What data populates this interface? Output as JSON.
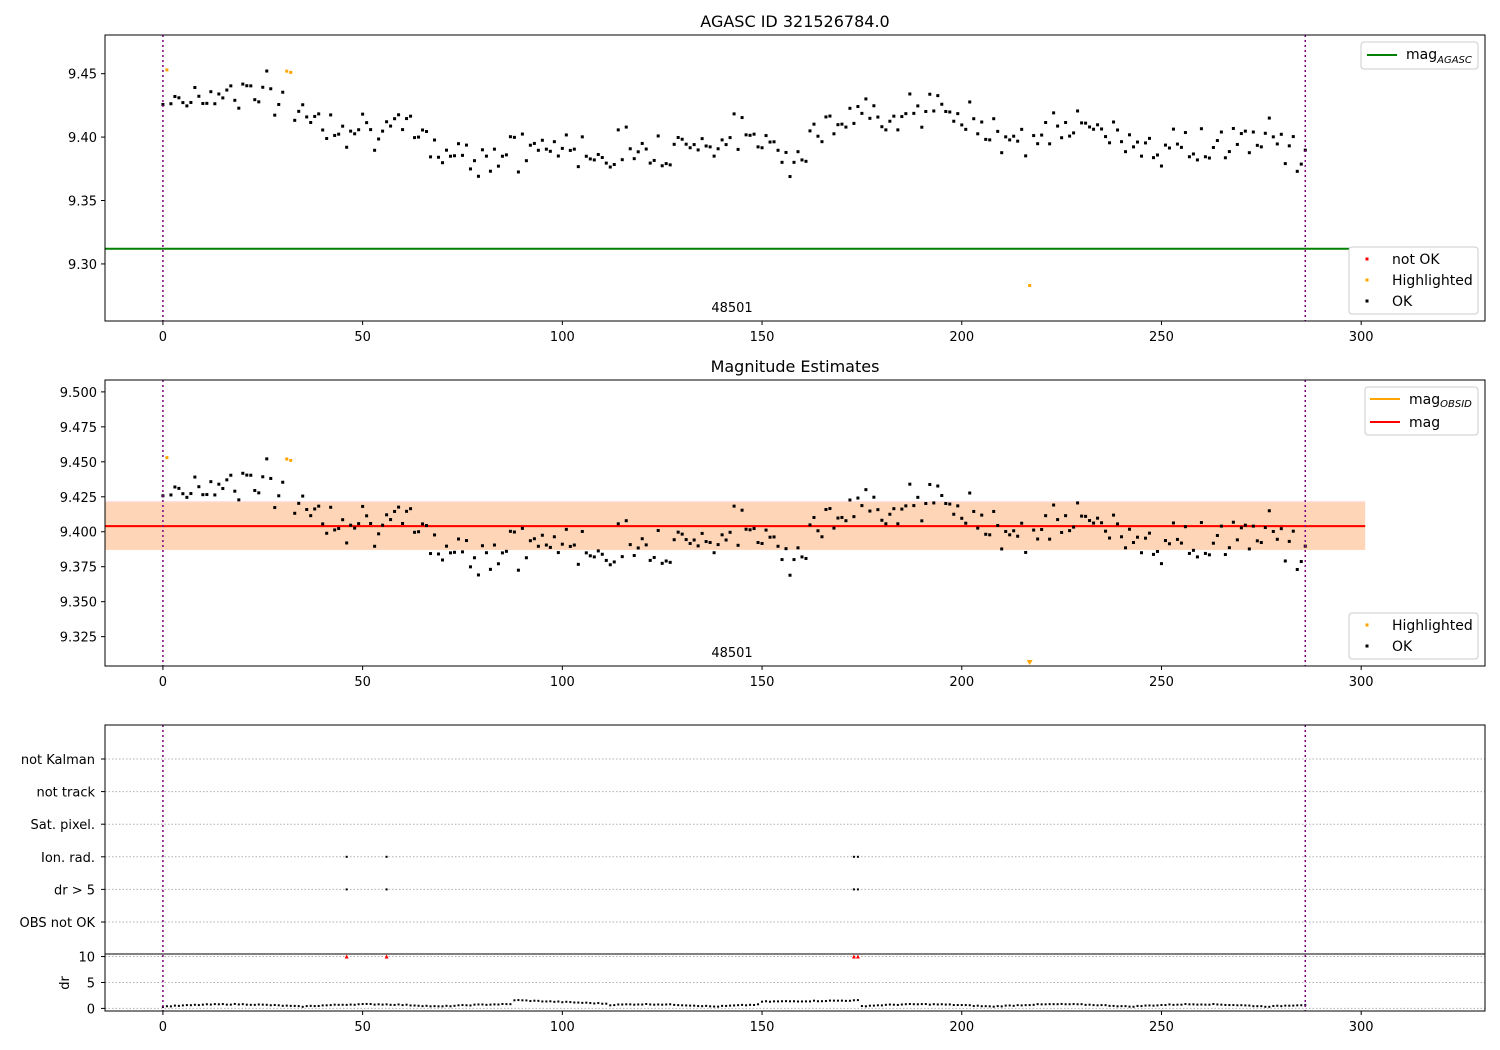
{
  "chart_data": [
    {
      "type": "scatter",
      "title": "AGASC ID 321526784.0",
      "xlabel": "",
      "ylabel": "",
      "xlim": [
        -14.5,
        331
      ],
      "ylim": [
        9.255,
        9.4805
      ],
      "xticks": [
        "0",
        "50",
        "100",
        "150",
        "200",
        "250",
        "300"
      ],
      "yticks": [
        "9.30",
        "9.35",
        "9.40",
        "9.45"
      ],
      "ytick_values": [
        9.3,
        9.35,
        9.4,
        9.45
      ],
      "obsid_label": "48501",
      "obsid_boundaries": [
        0,
        286
      ],
      "mag_agasc": 9.312,
      "legend_lines": [
        {
          "name": "mag",
          "sub": "AGASC",
          "color": "#008000"
        }
      ],
      "legend_points": [
        {
          "name": "not OK",
          "color": "#ff0000"
        },
        {
          "name": "Highlighted",
          "color": "#ffa500"
        },
        {
          "name": "OK",
          "color": "#000000"
        }
      ],
      "series": [
        {
          "name": "OK",
          "color": "#000000",
          "x": [],
          "y": []
        },
        {
          "name": "Highlighted",
          "color": "#ffa500",
          "x": [
            1,
            31,
            32,
            217
          ],
          "y": [
            9.453,
            9.452,
            9.451,
            9.283
          ]
        },
        {
          "name": "not OK",
          "color": "#ff0000",
          "x": [],
          "y": []
        }
      ]
    },
    {
      "type": "scatter",
      "title": "Magnitude Estimates",
      "xlabel": "",
      "ylabel": "",
      "xlim": [
        -14.5,
        331
      ],
      "ylim": [
        9.304,
        9.5085
      ],
      "xticks": [
        "0",
        "50",
        "100",
        "150",
        "200",
        "250",
        "300"
      ],
      "yticks": [
        "9.325",
        "9.350",
        "9.375",
        "9.400",
        "9.425",
        "9.450",
        "9.475",
        "9.500"
      ],
      "ytick_values": [
        9.325,
        9.35,
        9.375,
        9.4,
        9.425,
        9.45,
        9.475,
        9.5
      ],
      "obsid_label": "48501",
      "obsid_boundaries": [
        0,
        286
      ],
      "mag": 9.404,
      "mag_band": [
        9.387,
        9.422
      ],
      "mag_obsid": 9.404,
      "mag_obsid_band": [
        9.387,
        9.421
      ],
      "band_x_range": [
        -14.5,
        301
      ],
      "legend_lines": [
        {
          "name": "mag",
          "sub": "OBSID",
          "color": "#ffa500"
        },
        {
          "name": "mag",
          "sub": "",
          "color": "#ff0000"
        }
      ],
      "legend_points": [
        {
          "name": "Highlighted",
          "color": "#ffa500"
        },
        {
          "name": "OK",
          "color": "#000000"
        }
      ],
      "series": [
        {
          "name": "OK",
          "color": "#000000",
          "x": [],
          "y": []
        },
        {
          "name": "Highlighted",
          "color": "#ffa500",
          "x": [
            1,
            31,
            32
          ],
          "y": [
            9.453,
            9.452,
            9.451
          ]
        }
      ],
      "offscale_markers": [
        {
          "x": 217,
          "color": "#ffa500"
        }
      ]
    },
    {
      "type": "scatter",
      "title": "",
      "xlim": [
        -14.5,
        331
      ],
      "xticks": [
        "0",
        "50",
        "100",
        "150",
        "200",
        "250",
        "300"
      ],
      "obsid_boundaries": [
        0,
        286
      ],
      "flag_categories": [
        "not Kalman",
        "not track",
        "Sat. pixel.",
        "Ion. rad.",
        "dr > 5",
        "OBS not OK"
      ],
      "flags": [
        {
          "category": "Ion. rad.",
          "x": [
            46,
            56,
            173,
            174
          ]
        },
        {
          "category": "dr > 5",
          "x": [
            46,
            56,
            173,
            174
          ]
        }
      ],
      "dr_ylabel": "dr",
      "dr_yticks": [
        "0",
        "5",
        "10"
      ],
      "dr_ytick_values": [
        0,
        5,
        10
      ],
      "dr_ylim": [
        -0.5,
        10.3
      ],
      "dr_x": [],
      "dr_y": [],
      "dr_clipped": [
        {
          "x": 46,
          "y": 10
        },
        {
          "x": 56,
          "y": 10
        },
        {
          "x": 173,
          "y": 10
        },
        {
          "x": 174,
          "y": 10
        }
      ]
    }
  ]
}
